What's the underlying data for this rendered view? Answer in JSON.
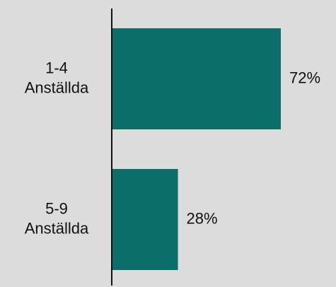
{
  "chart_data": {
    "type": "bar",
    "orientation": "horizontal",
    "categories": [
      [
        "1-4",
        "Anställda"
      ],
      [
        "5-9",
        "Anställda"
      ]
    ],
    "series": [
      {
        "values": [
          72,
          28
        ]
      }
    ],
    "data_labels": [
      "72%",
      "28%"
    ],
    "xlim": [
      0,
      100
    ],
    "grid": false,
    "legend": "none",
    "colors": {
      "background": "#dcdcdc",
      "bar": "#0b6e69",
      "axis": "#111111",
      "text": "#111111"
    }
  }
}
